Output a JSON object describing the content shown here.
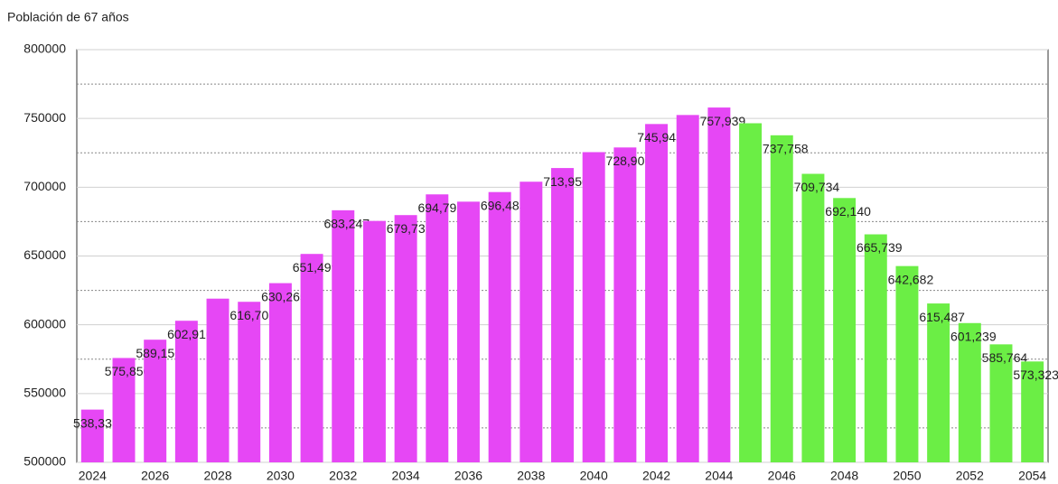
{
  "chart_data": {
    "type": "bar",
    "title": "Población de 67 años",
    "categories": [
      "2024",
      null,
      "2026",
      null,
      "2028",
      null,
      "2030",
      null,
      "2032",
      null,
      "2034",
      null,
      "2036",
      null,
      "2038",
      null,
      "2040",
      null,
      "2042",
      null,
      "2044",
      null,
      "2046",
      null,
      "2048",
      null,
      "2050",
      null,
      "2052",
      null,
      "2054"
    ],
    "values": [
      538335,
      575850,
      589150,
      602916,
      619000,
      616702,
      630265,
      651499,
      683247,
      675500,
      679731,
      694797,
      689500,
      696485,
      704000,
      713950,
      725500,
      728906,
      745943,
      752500,
      757939,
      746500,
      737758,
      709734,
      692140,
      665739,
      642682,
      615487,
      601239,
      585764,
      573323
    ],
    "value_labels": [
      "538,335",
      "575,850",
      "589,150",
      "602,916",
      null,
      "616,702",
      "630,265",
      "651,499",
      "683,247",
      null,
      "679,731",
      "694,797",
      null,
      "696,485",
      null,
      "713,950",
      null,
      "728,906",
      "745,943",
      null,
      "757,939",
      null,
      "737,758",
      "709,734",
      "692,140",
      "665,739",
      "642,682",
      "615,487",
      "601,239",
      "585,764",
      "573,323"
    ],
    "colors": [
      "#e647f5",
      "#e647f5",
      "#e647f5",
      "#e647f5",
      "#e647f5",
      "#e647f5",
      "#e647f5",
      "#e647f5",
      "#e647f5",
      "#e647f5",
      "#e647f5",
      "#e647f5",
      "#e647f5",
      "#e647f5",
      "#e647f5",
      "#e647f5",
      "#e647f5",
      "#e647f5",
      "#e647f5",
      "#e647f5",
      "#e647f5",
      "#6bee45",
      "#6bee45",
      "#6bee45",
      "#6bee45",
      "#6bee45",
      "#6bee45",
      "#6bee45",
      "#6bee45",
      "#6bee45",
      "#6bee45"
    ],
    "ylim": [
      500000,
      800000
    ],
    "yticks": [
      500000,
      550000,
      600000,
      650000,
      700000,
      750000,
      800000
    ],
    "minor_yticks": [
      525000,
      575000,
      625000,
      675000,
      725000,
      775000
    ],
    "grid": true
  }
}
